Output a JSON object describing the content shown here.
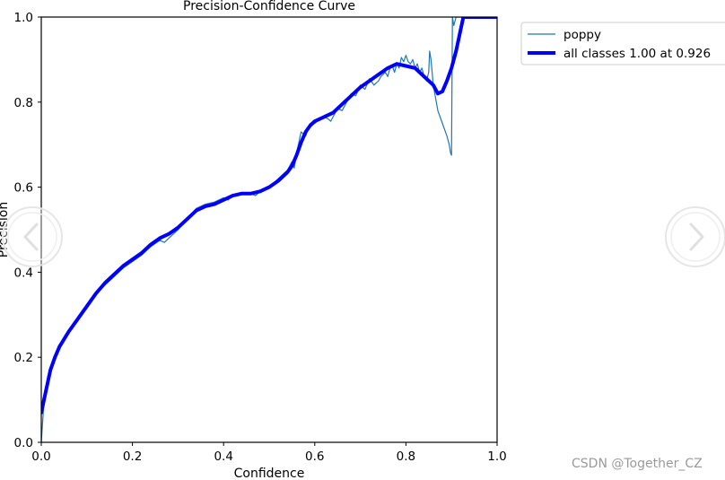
{
  "chart_data": {
    "type": "line",
    "title": "Precision-Confidence Curve",
    "xlabel": "Confidence",
    "ylabel": "Precision",
    "xlim": [
      0.0,
      1.0
    ],
    "ylim": [
      0.0,
      1.0
    ],
    "xticks": [
      "0.0",
      "0.2",
      "0.4",
      "0.6",
      "0.8",
      "1.0"
    ],
    "yticks": [
      "0.0",
      "0.2",
      "0.4",
      "0.6",
      "0.8",
      "1.0"
    ],
    "grid": false,
    "legend_position": "outside-top-right",
    "series": [
      {
        "name": "poppy",
        "color": "#1f77b4",
        "line_width": "thin",
        "x": [
          0.0,
          0.005,
          0.01,
          0.02,
          0.03,
          0.04,
          0.06,
          0.08,
          0.1,
          0.12,
          0.14,
          0.16,
          0.18,
          0.2,
          0.22,
          0.24,
          0.26,
          0.27,
          0.28,
          0.3,
          0.32,
          0.34,
          0.35,
          0.36,
          0.38,
          0.4,
          0.41,
          0.42,
          0.44,
          0.46,
          0.47,
          0.48,
          0.5,
          0.52,
          0.54,
          0.55,
          0.555,
          0.56,
          0.57,
          0.58,
          0.59,
          0.6,
          0.61,
          0.62,
          0.63,
          0.635,
          0.64,
          0.65,
          0.66,
          0.67,
          0.68,
          0.69,
          0.7,
          0.71,
          0.72,
          0.73,
          0.74,
          0.745,
          0.75,
          0.755,
          0.76,
          0.765,
          0.77,
          0.775,
          0.78,
          0.785,
          0.79,
          0.795,
          0.8,
          0.805,
          0.81,
          0.815,
          0.82,
          0.825,
          0.83,
          0.835,
          0.84,
          0.845,
          0.85,
          0.852,
          0.855,
          0.86,
          0.87,
          0.88,
          0.89,
          0.895,
          0.898,
          0.9,
          0.902,
          0.905,
          0.91,
          0.92,
          0.93,
          0.95,
          0.97,
          1.0
        ],
        "y": [
          0.0,
          0.08,
          0.11,
          0.16,
          0.2,
          0.23,
          0.26,
          0.29,
          0.32,
          0.35,
          0.37,
          0.39,
          0.41,
          0.425,
          0.44,
          0.46,
          0.475,
          0.47,
          0.48,
          0.5,
          0.525,
          0.55,
          0.555,
          0.56,
          0.565,
          0.575,
          0.57,
          0.58,
          0.585,
          0.585,
          0.58,
          0.59,
          0.6,
          0.62,
          0.64,
          0.66,
          0.645,
          0.68,
          0.73,
          0.72,
          0.75,
          0.75,
          0.76,
          0.765,
          0.76,
          0.755,
          0.765,
          0.785,
          0.78,
          0.8,
          0.82,
          0.815,
          0.84,
          0.83,
          0.855,
          0.84,
          0.85,
          0.86,
          0.865,
          0.87,
          0.86,
          0.88,
          0.885,
          0.87,
          0.89,
          0.88,
          0.905,
          0.895,
          0.91,
          0.895,
          0.89,
          0.9,
          0.88,
          0.89,
          0.87,
          0.88,
          0.86,
          0.85,
          0.87,
          0.92,
          0.9,
          0.84,
          0.78,
          0.75,
          0.72,
          0.7,
          0.68,
          0.675,
          1.0,
          0.98,
          1.0,
          1.0,
          1.0,
          1.0,
          1.0,
          1.0
        ]
      },
      {
        "name": "all classes 1.00 at 0.926",
        "color": "#0000ff",
        "line_width": "thick",
        "x": [
          0.0,
          0.01,
          0.02,
          0.03,
          0.04,
          0.06,
          0.08,
          0.1,
          0.12,
          0.14,
          0.16,
          0.18,
          0.2,
          0.22,
          0.24,
          0.26,
          0.28,
          0.3,
          0.32,
          0.34,
          0.36,
          0.38,
          0.4,
          0.42,
          0.44,
          0.46,
          0.48,
          0.5,
          0.52,
          0.54,
          0.55,
          0.56,
          0.57,
          0.58,
          0.59,
          0.6,
          0.62,
          0.64,
          0.66,
          0.68,
          0.7,
          0.72,
          0.74,
          0.76,
          0.78,
          0.8,
          0.82,
          0.84,
          0.86,
          0.87,
          0.88,
          0.89,
          0.9,
          0.91,
          0.92,
          0.926,
          0.95,
          1.0
        ],
        "y": [
          0.07,
          0.12,
          0.17,
          0.2,
          0.225,
          0.26,
          0.29,
          0.32,
          0.35,
          0.375,
          0.395,
          0.415,
          0.43,
          0.445,
          0.465,
          0.48,
          0.49,
          0.505,
          0.525,
          0.545,
          0.555,
          0.56,
          0.57,
          0.58,
          0.585,
          0.585,
          0.59,
          0.6,
          0.615,
          0.635,
          0.65,
          0.675,
          0.705,
          0.73,
          0.745,
          0.755,
          0.765,
          0.775,
          0.795,
          0.815,
          0.835,
          0.85,
          0.865,
          0.88,
          0.89,
          0.885,
          0.88,
          0.86,
          0.84,
          0.82,
          0.825,
          0.85,
          0.88,
          0.92,
          0.97,
          1.0,
          1.0,
          1.0
        ]
      }
    ]
  },
  "watermark": "CSDN @Together_CZ",
  "nav": {
    "left_icon": "chevron-left-icon",
    "right_icon": "chevron-right-icon"
  }
}
